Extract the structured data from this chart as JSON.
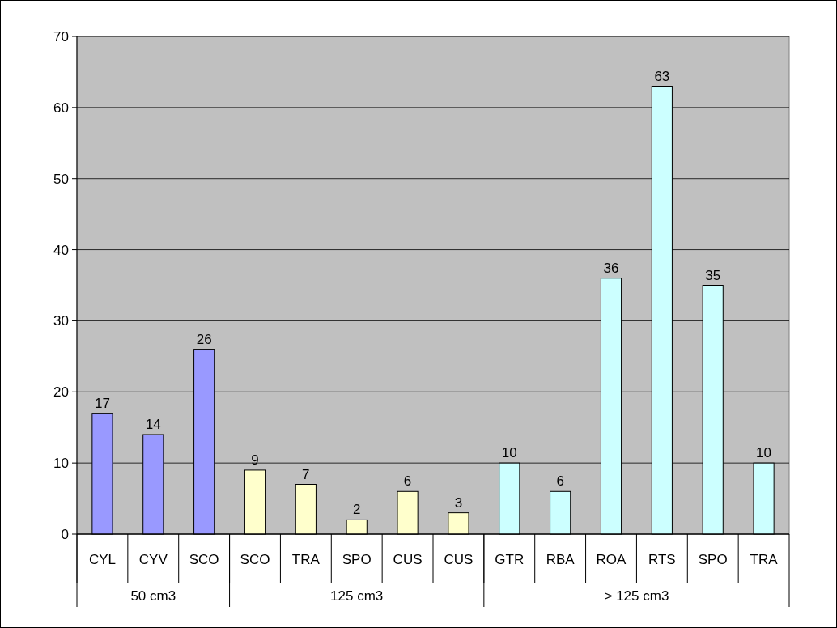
{
  "chart_data": {
    "type": "bar",
    "categories": [
      "CYL",
      "CYV",
      "SCO",
      "SCO",
      "TRA",
      "SPO",
      "CUS",
      "CUS",
      "GTR",
      "RBA",
      "ROA",
      "RTS",
      "SPO",
      "TRA"
    ],
    "values": [
      17,
      14,
      26,
      9,
      7,
      2,
      6,
      3,
      10,
      6,
      36,
      63,
      35,
      10
    ],
    "colors": [
      "#9999ff",
      "#9999ff",
      "#9999ff",
      "#ffffcc",
      "#ffffcc",
      "#ffffcc",
      "#ffffcc",
      "#ffffcc",
      "#ccffff",
      "#ccffff",
      "#ccffff",
      "#ccffff",
      "#ccffff",
      "#ccffff"
    ],
    "annotations": [
      "50 cm3",
      "125 cm3",
      "> 125 cm3"
    ],
    "ylim": [
      0,
      70
    ],
    "yticks": [
      0,
      10,
      20,
      30,
      40,
      50,
      60,
      70
    ],
    "grid": "y",
    "data_labels": true
  }
}
